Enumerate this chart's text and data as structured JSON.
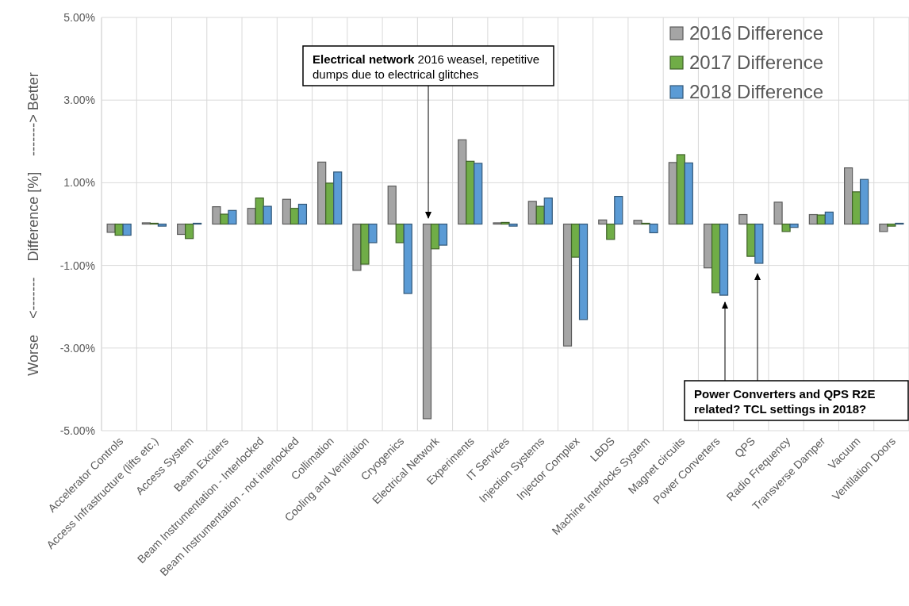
{
  "chart_data": {
    "type": "bar",
    "ylabel": "Worse    <-------    Difference [%]    -------> Better",
    "categories": [
      "Accelerator Controls",
      "Access Infrastructure (lifts etc.)",
      "Access System",
      "Beam Exciters",
      "Beam Instrumentation - Interlocked",
      "Beam Instrumentation - not interlocked",
      "Collimation",
      "Cooling and Ventilation",
      "Cryogenics",
      "Electrical Network",
      "Experiments",
      "IT Services",
      "Injection Systems",
      "Injector Complex",
      "LBDS",
      "Machine Interlocks System",
      "Magnet circuits",
      "Power Converters",
      "QPS",
      "Radio Frequency",
      "Transverse Damper",
      "Vacuum",
      "Ventilation Doors"
    ],
    "series": [
      {
        "name": "2016 Difference",
        "color": "#a5a5a5",
        "values": [
          -0.2,
          0.03,
          -0.25,
          0.42,
          0.38,
          0.6,
          1.5,
          -1.12,
          0.92,
          -4.71,
          2.04,
          0.03,
          0.55,
          -2.95,
          0.1,
          0.09,
          1.49,
          -1.06,
          0.23,
          0.53,
          0.23,
          1.36,
          -0.18
        ]
      },
      {
        "name": "2017 Difference",
        "color": "#70ad47",
        "values": [
          -0.27,
          0.02,
          -0.35,
          0.24,
          0.63,
          0.38,
          0.99,
          -0.97,
          -0.45,
          -0.6,
          1.52,
          0.04,
          0.43,
          -0.8,
          -0.37,
          0.02,
          1.68,
          -1.66,
          -0.78,
          -0.18,
          0.22,
          0.78,
          -0.05
        ]
      },
      {
        "name": "2018 Difference",
        "color": "#5b9bd5",
        "values": [
          -0.27,
          -0.05,
          0.02,
          0.33,
          0.43,
          0.48,
          1.26,
          -0.45,
          -1.68,
          -0.51,
          1.47,
          -0.05,
          0.63,
          -2.31,
          0.67,
          -0.21,
          1.48,
          -1.72,
          -0.95,
          -0.08,
          0.29,
          1.08,
          0.02
        ]
      }
    ],
    "ylim": [
      -5,
      5
    ],
    "yticks": [
      {
        "value": -5,
        "label": "-5.00%"
      },
      {
        "value": -3,
        "label": "-3.00%"
      },
      {
        "value": -1,
        "label": "-1.00%"
      },
      {
        "value": 1,
        "label": "1.00%"
      },
      {
        "value": 3,
        "label": "3.00%"
      },
      {
        "value": 5,
        "label": "5.00%"
      }
    ],
    "grid": true,
    "legend": "top right",
    "annotations": [
      "Electrical network 2016 weasel, repetitive dumps due to electrical glitches",
      "Power Converters and QPS R2E related? TCL settings in 2018?"
    ]
  }
}
